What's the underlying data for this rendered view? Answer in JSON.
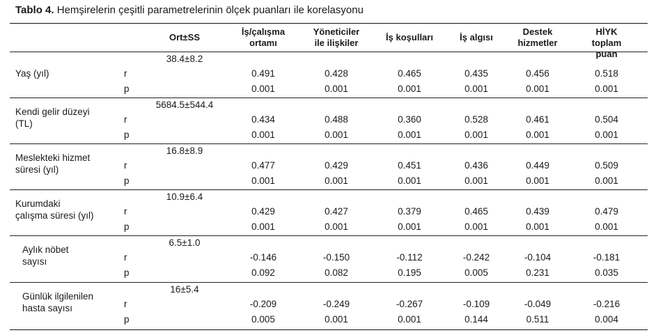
{
  "title": {
    "bold": "Tablo 4.",
    "text": "Hemşirelerin çeşitli parametrelerinin ölçek puanları ile korelasyonu"
  },
  "headers": {
    "ort": "Ort±SS",
    "c1_l1": "İş/çalışma",
    "c1_l2": "ortamı",
    "c2_l1": "Yöneticiler",
    "c2_l2": "ile ilişkiler",
    "c3": "İş koşulları",
    "c4": "İş algısı",
    "c5_l1": "Destek",
    "c5_l2": "hizmetler",
    "c6_l1": "HİYK toplam",
    "c6_l2": "puan"
  },
  "stat_labels": {
    "r": "r",
    "p": "p"
  },
  "rows": [
    {
      "label_l1": "Yaş (yıl)",
      "label_l2": "",
      "ort": "38.4±8.2",
      "r": [
        "0.491",
        "0.428",
        "0.465",
        "0.435",
        "0.456",
        "0.518"
      ],
      "p": [
        "0.001",
        "0.001",
        "0.001",
        "0.001",
        "0.001",
        "0.001"
      ]
    },
    {
      "label_l1": "Kendi gelir düzeyi",
      "label_l2": "(TL)",
      "ort": "5684.5±544.4",
      "r": [
        "0.434",
        "0.488",
        "0.360",
        "0.528",
        "0.461",
        "0.504"
      ],
      "p": [
        "0.001",
        "0.001",
        "0.001",
        "0.001",
        "0.001",
        "0.001"
      ]
    },
    {
      "label_l1": "Meslekteki hizmet",
      "label_l2": "süresi (yıl)",
      "ort": "16.8±8.9",
      "r": [
        "0.477",
        "0.429",
        "0.451",
        "0.436",
        "0.449",
        "0.509"
      ],
      "p": [
        "0.001",
        "0.001",
        "0.001",
        "0.001",
        "0.001",
        "0.001"
      ]
    },
    {
      "label_l1": "Kurumdaki",
      "label_l2": "çalışma süresi (yıl)",
      "ort": "10.9±6.4",
      "r": [
        "0.429",
        "0.427",
        "0.379",
        "0.465",
        "0.439",
        "0.479"
      ],
      "p": [
        "0.001",
        "0.001",
        "0.001",
        "0.001",
        "0.001",
        "0.001"
      ]
    },
    {
      "label_l1": "Aylık nöbet",
      "label_l2": "sayısı",
      "ort": "6.5±1.0",
      "r": [
        "-0.146",
        "-0.150",
        "-0.112",
        "-0.242",
        "-0.104",
        "-0.181"
      ],
      "p": [
        "0.092",
        "0.082",
        "0.195",
        "0.005",
        "0.231",
        "0.035"
      ]
    },
    {
      "label_l1": "Günlük ilgilenilen",
      "label_l2": "hasta sayısı",
      "ort": "16±5.4",
      "r": [
        "-0.209",
        "-0.249",
        "-0.267",
        "-0.109",
        "-0.049",
        "-0.216"
      ],
      "p": [
        "0.005",
        "0.001",
        "0.001",
        "0.144",
        "0.511",
        "0.004"
      ]
    }
  ]
}
